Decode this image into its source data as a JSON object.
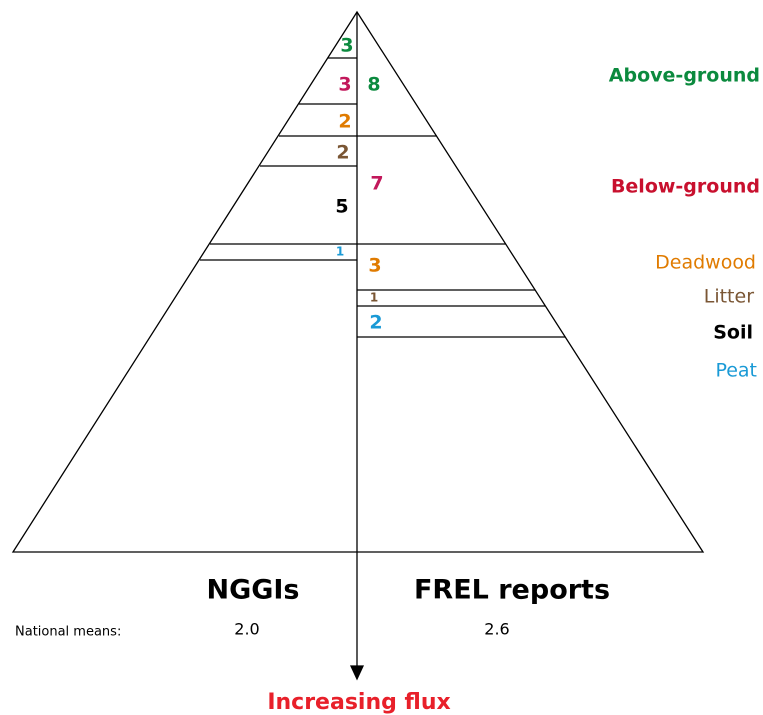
{
  "legend": [
    {
      "label": "Above-ground",
      "color": "#0b8a3e"
    },
    {
      "label": "Below-ground",
      "color": "#c8102e"
    },
    {
      "label": "Deadwood",
      "color": "#e07b00"
    },
    {
      "label": "Litter",
      "color": "#7a5634"
    },
    {
      "label": "Soil",
      "color": "#000000"
    },
    {
      "label": "Peat",
      "color": "#1a9ad6"
    }
  ],
  "left": {
    "title": "NGGIs",
    "mean": "2.0",
    "values": [
      {
        "value": "3",
        "color": "#0b8a3e"
      },
      {
        "value": "3",
        "color": "#c2185b"
      },
      {
        "value": "2",
        "color": "#e07b00"
      },
      {
        "value": "2",
        "color": "#7a5634"
      },
      {
        "value": "5",
        "color": "#000000"
      },
      {
        "value": "1",
        "color": "#1a9ad6"
      }
    ]
  },
  "right": {
    "title": "FREL reports",
    "mean": "2.6",
    "values": [
      {
        "value": "8",
        "color": "#0b8a3e"
      },
      {
        "value": "7",
        "color": "#c2185b"
      },
      {
        "value": "3",
        "color": "#e07b00"
      },
      {
        "value": "1",
        "color": "#7a5634"
      },
      {
        "value": "2",
        "color": "#1a9ad6"
      }
    ]
  },
  "means_label": "National means:",
  "axis_label": "Increasing flux"
}
